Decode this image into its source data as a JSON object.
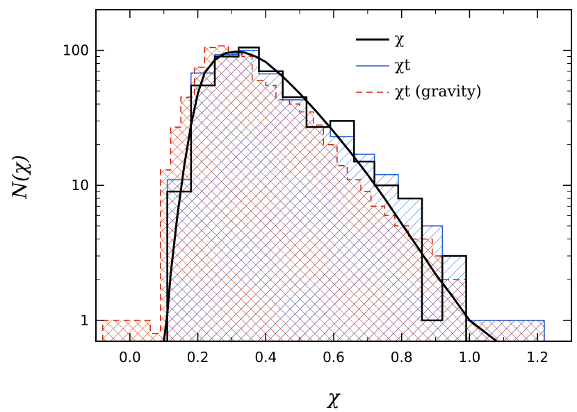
{
  "chart_data": {
    "type": "histogram",
    "xlabel": "χ",
    "ylabel": "N(χ)",
    "xlim": [
      -0.1,
      1.3
    ],
    "ylim": [
      0.7,
      200
    ],
    "yscale": "log",
    "x_ticks": [
      0.0,
      0.2,
      0.4,
      0.6,
      0.8,
      1.0,
      1.2
    ],
    "x_tick_labels": [
      "0.0",
      "0.2",
      "0.4",
      "0.6",
      "0.8",
      "1.0",
      "1.2"
    ],
    "y_ticks": [
      1,
      10,
      100
    ],
    "y_tick_labels": [
      "1",
      "10",
      "100"
    ],
    "legend_position": "top-right",
    "series": [
      {
        "name": "χ",
        "style": "solid-thick",
        "color": "#000000",
        "bin_edges": [
          0.1,
          0.11,
          0.18,
          0.25,
          0.32,
          0.38,
          0.45,
          0.52,
          0.59,
          0.66,
          0.72,
          0.79,
          0.86,
          0.92,
          0.99,
          1.05
        ],
        "counts": [
          0.7,
          9,
          55,
          90,
          105,
          70,
          45,
          27,
          30,
          15,
          10,
          8,
          1,
          3,
          0.7
        ]
      },
      {
        "name": "χt",
        "style": "solid-thin-hatched",
        "color": "#1f5fd6",
        "bin_edges": [
          0.09,
          0.11,
          0.18,
          0.25,
          0.32,
          0.38,
          0.45,
          0.52,
          0.59,
          0.66,
          0.72,
          0.79,
          0.86,
          0.92,
          0.99,
          1.05,
          1.12,
          1.19,
          1.22
        ],
        "counts": [
          0.7,
          11,
          68,
          93,
          100,
          67,
          43,
          27,
          23,
          17,
          12,
          8,
          5,
          3,
          1,
          1,
          1,
          1
        ]
      },
      {
        "name": "χt (gravity)",
        "style": "dashed-hatched",
        "color": "#cc2200",
        "bin_edges": [
          -0.08,
          0.06,
          0.09,
          0.12,
          0.15,
          0.19,
          0.22,
          0.26,
          0.29,
          0.33,
          0.36,
          0.4,
          0.43,
          0.47,
          0.5,
          0.54,
          0.57,
          0.61,
          0.64,
          0.68,
          0.71,
          0.75,
          0.78,
          0.82,
          0.85,
          0.89,
          0.92,
          0.96,
          0.99,
          1.03,
          1.06,
          1.1,
          1.13,
          1.17,
          1.2,
          1.22
        ],
        "counts": [
          1,
          0.8,
          13,
          27,
          45,
          75,
          105,
          108,
          95,
          90,
          60,
          55,
          43,
          40,
          35,
          28,
          20,
          14,
          11,
          9,
          7,
          6,
          5,
          4,
          4,
          3,
          2,
          2,
          1,
          1,
          1,
          1,
          1,
          1,
          1
        ]
      },
      {
        "name": "fit",
        "style": "solid-thick-curve",
        "color": "#000000",
        "x": [
          0.1,
          0.11,
          0.12,
          0.14,
          0.16,
          0.18,
          0.2,
          0.22,
          0.25,
          0.28,
          0.31,
          0.34,
          0.37,
          0.4,
          0.45,
          0.5,
          0.55,
          0.6,
          0.65,
          0.7,
          0.75,
          0.8,
          0.85,
          0.9,
          0.95,
          1.0,
          1.05,
          1.08
        ],
        "y": [
          0.7,
          1.1,
          2.2,
          6,
          14,
          28,
          48,
          68,
          85,
          95,
          98,
          96,
          90,
          82,
          64,
          48,
          35,
          25,
          17.5,
          12,
          8,
          5.2,
          3.4,
          2.2,
          1.5,
          1.0,
          0.8,
          0.7
        ]
      }
    ],
    "legend": [
      {
        "label": "χ",
        "style": "solid-thick",
        "color": "#000000"
      },
      {
        "label": "χt",
        "style": "solid-thin",
        "color": "#1f5fd6"
      },
      {
        "label": "χt (gravity)",
        "style": "dashed",
        "color": "#cc2200"
      }
    ]
  }
}
